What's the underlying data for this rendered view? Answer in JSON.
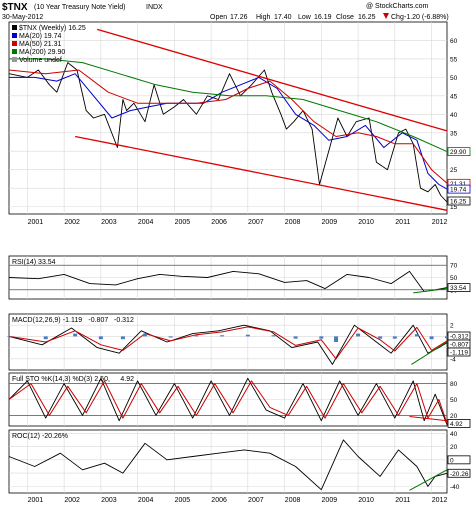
{
  "header": {
    "symbol": "$TNX",
    "description": "(10 Year Treasury Note Yield)",
    "exchange": "INDX",
    "date": "30-May-2012",
    "open_label": "Open",
    "open": "17.26",
    "high_label": "High",
    "high": "17.40",
    "low_label": "Low",
    "low": "16.19",
    "close_label": "Close",
    "close": "16.25",
    "chg_label": "Chg",
    "chg": "-1.20 (-6.88%)",
    "credit": "@ StockCharts.com",
    "down_arrow_color": "#cc0000"
  },
  "chart_data": [
    {
      "panel": "price",
      "type": "line",
      "x_range": [
        2000.5,
        2012.42
      ],
      "ylim": [
        13,
        65
      ],
      "y_ticks": [
        15,
        20,
        25,
        30,
        35,
        40,
        45,
        50,
        55,
        60
      ],
      "x_tick_labels": [
        "2001",
        "2002",
        "2003",
        "2004",
        "2005",
        "2006",
        "2007",
        "2008",
        "2009",
        "2010",
        "2011",
        "2012"
      ],
      "grid": true,
      "legend_placement": "top-left",
      "legend": [
        {
          "label": "$TNX (Weekly) 16.25",
          "color": "#000000"
        },
        {
          "label": "MA(20) 19.74",
          "color": "#0000cc"
        },
        {
          "label": "MA(50) 21.31",
          "color": "#cc0000"
        },
        {
          "label": "MA(200) 29.90",
          "color": "#007700"
        },
        {
          "label": "Volume undef",
          "color": "#999999"
        }
      ],
      "series": [
        {
          "name": "$TNX (Weekly)",
          "color": "#000000",
          "x": [
            2000.5,
            2001.0,
            2001.3,
            2001.6,
            2001.8,
            2002.1,
            2002.35,
            2002.6,
            2002.8,
            2003.1,
            2003.45,
            2003.6,
            2003.7,
            2003.9,
            2004.2,
            2004.45,
            2004.7,
            2005.0,
            2005.25,
            2005.6,
            2005.9,
            2006.2,
            2006.5,
            2006.8,
            2007.1,
            2007.45,
            2007.65,
            2007.9,
            2008.05,
            2008.25,
            2008.5,
            2008.75,
            2008.95,
            2009.2,
            2009.45,
            2009.7,
            2009.95,
            2010.3,
            2010.5,
            2010.8,
            2011.1,
            2011.3,
            2011.5,
            2011.7,
            2011.9,
            2012.1,
            2012.25,
            2012.42
          ],
          "values": [
            51,
            50,
            52,
            48,
            46,
            54,
            52,
            41,
            39,
            40,
            31,
            44,
            41,
            43,
            38,
            48,
            40,
            42,
            44,
            40,
            45,
            44,
            51,
            45,
            48,
            52,
            46,
            40,
            36,
            38,
            41,
            36,
            21,
            30,
            39,
            34,
            38,
            39,
            27,
            25,
            35,
            36,
            32,
            20,
            19,
            21,
            18,
            16.25
          ]
        },
        {
          "name": "MA(20)",
          "color": "#0000cc",
          "x": [
            2000.5,
            2001.2,
            2001.8,
            2002.3,
            2002.8,
            2003.3,
            2003.8,
            2004.3,
            2004.8,
            2005.3,
            2005.8,
            2006.3,
            2006.8,
            2007.3,
            2007.8,
            2008.3,
            2008.8,
            2009.2,
            2009.7,
            2010.2,
            2010.7,
            2011.2,
            2011.6,
            2011.9,
            2012.2,
            2012.42
          ],
          "values": [
            50,
            50,
            49,
            51,
            45,
            39,
            41,
            42,
            43,
            43,
            43,
            46,
            48,
            50,
            47,
            40,
            37,
            33,
            34,
            37,
            31,
            35,
            33,
            24,
            21,
            19.74
          ]
        },
        {
          "name": "MA(50)",
          "color": "#cc0000",
          "x": [
            2000.5,
            2001.5,
            2002.4,
            2003.2,
            2004.0,
            2004.8,
            2005.6,
            2006.4,
            2007.0,
            2007.6,
            2008.2,
            2008.8,
            2009.4,
            2010.0,
            2010.5,
            2011.0,
            2011.5,
            2012.0,
            2012.42
          ],
          "values": [
            52,
            51,
            52,
            46,
            43,
            43,
            43,
            44,
            47,
            49,
            44,
            38,
            34,
            35,
            34,
            32,
            32,
            25,
            21.31
          ]
        },
        {
          "name": "MA(200)",
          "color": "#007700",
          "x": [
            2000.5,
            2001.5,
            2002.5,
            2003.5,
            2004.5,
            2005.5,
            2006.5,
            2007.5,
            2008.5,
            2009.5,
            2010.5,
            2011.5,
            2012.42
          ],
          "values": [
            55,
            55,
            54,
            51,
            48,
            46,
            45,
            45,
            44,
            41,
            38,
            34,
            29.9
          ]
        }
      ],
      "annotations": [
        "Descending channel upper line (red)",
        "Descending channel lower line (red)"
      ],
      "last_values": [
        {
          "label": "29.90",
          "color": "#007700"
        },
        {
          "label": "21.31",
          "color": "#cc0000"
        },
        {
          "label": "19.74",
          "color": "#0000cc"
        },
        {
          "label": "16.25",
          "color": "#000000"
        }
      ]
    },
    {
      "panel": "rsi",
      "type": "line",
      "legend": [
        {
          "label": "RSI(14) 33.54",
          "color": "#000000"
        }
      ],
      "ylim": [
        15,
        85
      ],
      "y_ticks": [
        30,
        50,
        70
      ],
      "reference_lines": [
        30,
        70
      ],
      "series": [
        {
          "name": "RSI(14)",
          "color": "#000000",
          "x": [
            2000.5,
            2001.3,
            2002.0,
            2002.7,
            2003.4,
            2004.0,
            2004.6,
            2005.2,
            2005.9,
            2006.6,
            2007.3,
            2008.0,
            2008.6,
            2009.1,
            2009.7,
            2010.3,
            2010.9,
            2011.4,
            2011.8,
            2012.1,
            2012.42
          ],
          "values": [
            50,
            48,
            55,
            40,
            38,
            48,
            55,
            52,
            50,
            60,
            56,
            42,
            45,
            32,
            55,
            50,
            40,
            60,
            27,
            30,
            33.54
          ]
        }
      ],
      "last_value": "33.54"
    },
    {
      "panel": "macd",
      "type": "line",
      "legend": [
        {
          "label": "MACD(12,26,9)",
          "color": "#000000"
        },
        {
          "label": "-1.119",
          "color": "#000000"
        },
        {
          "label": "-0.807",
          "color": "#cc0000"
        },
        {
          "label": "-0.312",
          "color": "#4a7cc0"
        }
      ],
      "ylim": [
        -6,
        4
      ],
      "y_ticks": [
        -4,
        -2,
        0,
        2
      ],
      "series": [
        {
          "name": "MACD",
          "color": "#000000",
          "x": [
            2000.5,
            2001.4,
            2002.2,
            2002.9,
            2003.5,
            2004.1,
            2004.8,
            2005.5,
            2006.2,
            2006.9,
            2007.6,
            2008.2,
            2008.9,
            2009.3,
            2009.9,
            2010.5,
            2010.9,
            2011.5,
            2011.9,
            2012.2,
            2012.42
          ],
          "values": [
            0,
            -1.5,
            1.5,
            -2,
            -3,
            1,
            -1,
            0.5,
            1,
            2,
            1,
            -2,
            -1,
            -5,
            2,
            -1,
            -3,
            2,
            -3,
            -2,
            -1.119
          ]
        },
        {
          "name": "Signal",
          "color": "#cc0000",
          "x": [
            2000.5,
            2001.5,
            2002.3,
            2003.0,
            2003.6,
            2004.2,
            2004.9,
            2005.6,
            2006.3,
            2007.0,
            2007.7,
            2008.3,
            2009.0,
            2009.4,
            2010.0,
            2010.6,
            2011.0,
            2011.6,
            2012.0,
            2012.42
          ],
          "values": [
            0,
            -1,
            1,
            -1.5,
            -2.5,
            0.5,
            -0.8,
            0.3,
            0.8,
            1.7,
            0.8,
            -1.6,
            -0.6,
            -4,
            1.5,
            -0.6,
            -2.6,
            1.6,
            -2.5,
            -0.807
          ]
        },
        {
          "name": "Histogram",
          "color": "#4a7cc0",
          "x": [
            2000.5,
            2001.5,
            2002.3,
            2003.0,
            2003.6,
            2004.2,
            2004.9,
            2005.6,
            2006.3,
            2007.0,
            2007.7,
            2008.3,
            2009.0,
            2009.4,
            2010.0,
            2010.6,
            2011.0,
            2011.6,
            2012.0,
            2012.42
          ],
          "values": [
            0,
            -0.5,
            0.5,
            -0.5,
            -0.5,
            0.5,
            -0.2,
            0.2,
            0.2,
            0.3,
            0.2,
            -0.4,
            -0.4,
            -1,
            0.5,
            -0.4,
            -0.4,
            0.4,
            -0.5,
            -0.312
          ]
        }
      ],
      "last_values": [
        "-0.312",
        "-0.807",
        "-1.119"
      ]
    },
    {
      "panel": "stochastic",
      "type": "line",
      "legend": [
        {
          "label": "Full STO %K(14,3) %D(3) 2.50,",
          "color": "#000000"
        },
        {
          "label": "4.92",
          "color": "#cc0000"
        }
      ],
      "ylim": [
        0,
        100
      ],
      "y_ticks": [
        20,
        50,
        80
      ],
      "reference_lines": [
        20,
        80
      ],
      "series": [
        {
          "name": "%K",
          "color": "#000000",
          "x": [
            2000.5,
            2001.0,
            2001.5,
            2002.0,
            2002.5,
            2003.0,
            2003.5,
            2004.0,
            2004.5,
            2005.0,
            2005.5,
            2006.0,
            2006.5,
            2007.0,
            2007.5,
            2008.0,
            2008.5,
            2009.0,
            2009.5,
            2010.0,
            2010.5,
            2011.0,
            2011.5,
            2011.8,
            2012.1,
            2012.42
          ],
          "values": [
            50,
            85,
            15,
            80,
            20,
            90,
            10,
            85,
            20,
            80,
            15,
            85,
            20,
            90,
            30,
            15,
            80,
            10,
            85,
            20,
            80,
            15,
            85,
            10,
            60,
            2.5
          ]
        },
        {
          "name": "%D",
          "color": "#cc0000",
          "x": [
            2000.5,
            2001.1,
            2001.6,
            2002.1,
            2002.6,
            2003.1,
            2003.6,
            2004.1,
            2004.6,
            2005.1,
            2005.6,
            2006.1,
            2006.6,
            2007.1,
            2007.6,
            2008.1,
            2008.6,
            2009.1,
            2009.6,
            2010.1,
            2010.6,
            2011.1,
            2011.6,
            2011.9,
            2012.2,
            2012.42
          ],
          "values": [
            50,
            80,
            20,
            75,
            25,
            85,
            15,
            80,
            25,
            75,
            20,
            80,
            25,
            85,
            35,
            20,
            75,
            15,
            80,
            25,
            75,
            20,
            80,
            15,
            50,
            4.92
          ]
        }
      ],
      "last_value": "4.92"
    },
    {
      "panel": "roc",
      "type": "line",
      "legend": [
        {
          "label": "ROC(12) -20.26%",
          "color": "#000000"
        }
      ],
      "ylim": [
        -50,
        45
      ],
      "y_ticks": [
        -40,
        -20,
        0,
        20,
        40
      ],
      "x_tick_labels": [
        "2001",
        "2002",
        "2003",
        "2004",
        "2005",
        "2006",
        "2007",
        "2008",
        "2009",
        "2010",
        "2011",
        "2012"
      ],
      "series": [
        {
          "name": "ROC(12)",
          "color": "#000000",
          "x": [
            2000.5,
            2001.2,
            2001.9,
            2002.5,
            2003.1,
            2003.6,
            2004.2,
            2004.8,
            2005.5,
            2006.2,
            2006.9,
            2007.6,
            2008.3,
            2009.0,
            2009.6,
            2010.0,
            2010.6,
            2011.1,
            2011.6,
            2011.9,
            2012.1,
            2012.42
          ],
          "values": [
            5,
            -10,
            10,
            -15,
            -5,
            -20,
            25,
            0,
            5,
            10,
            15,
            10,
            -10,
            -45,
            30,
            5,
            -25,
            15,
            -10,
            -40,
            -25,
            -20.26
          ]
        }
      ],
      "last_values": [
        "0",
        "-20.26"
      ]
    }
  ]
}
